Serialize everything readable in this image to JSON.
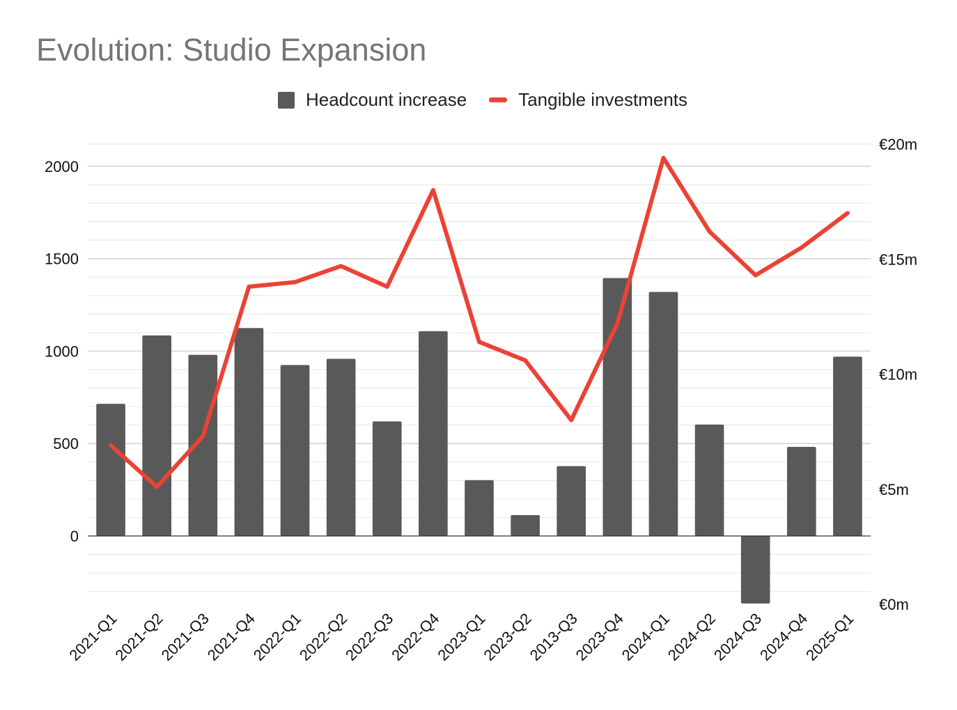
{
  "chart_data": {
    "type": "bar",
    "title": "Evolution: Studio Expansion",
    "categories": [
      "2021-Q1",
      "2021-Q2",
      "2021-Q3",
      "2021-Q4",
      "2022-Q1",
      "2022-Q2",
      "2022-Q3",
      "2022-Q4",
      "2023-Q1",
      "2023-Q2",
      "2013-Q3",
      "2023-Q4",
      "2024-Q1",
      "2024-Q2",
      "2024-Q3",
      "2024-Q4",
      "2025-Q1"
    ],
    "series": [
      {
        "name": "Headcount increase",
        "type": "bar",
        "axis": "left",
        "color": "#595959",
        "values": [
          715,
          1085,
          980,
          1125,
          925,
          958,
          620,
          1108,
          302,
          113,
          378,
          1395,
          1320,
          603,
          -365,
          482,
          970
        ]
      },
      {
        "name": "Tangible investments",
        "type": "line",
        "axis": "right",
        "color": "#ea4335",
        "values": [
          6.9,
          5.1,
          7.3,
          13.8,
          14.0,
          14.7,
          13.8,
          18.0,
          11.4,
          10.6,
          8.0,
          12.2,
          19.4,
          16.2,
          14.3,
          15.5,
          17.0
        ]
      }
    ],
    "y_left": {
      "ylim": [
        -300,
        2000
      ],
      "ticks": [
        0,
        500,
        1000,
        1500,
        2000
      ]
    },
    "y_right": {
      "ylim": [
        0,
        20
      ],
      "ticks": [
        0,
        5,
        10,
        15,
        20
      ],
      "tick_labels": [
        "€0m",
        "€5m",
        "€10m",
        "€15m",
        "€20m"
      ]
    },
    "grid": true,
    "legend": "top-center"
  }
}
